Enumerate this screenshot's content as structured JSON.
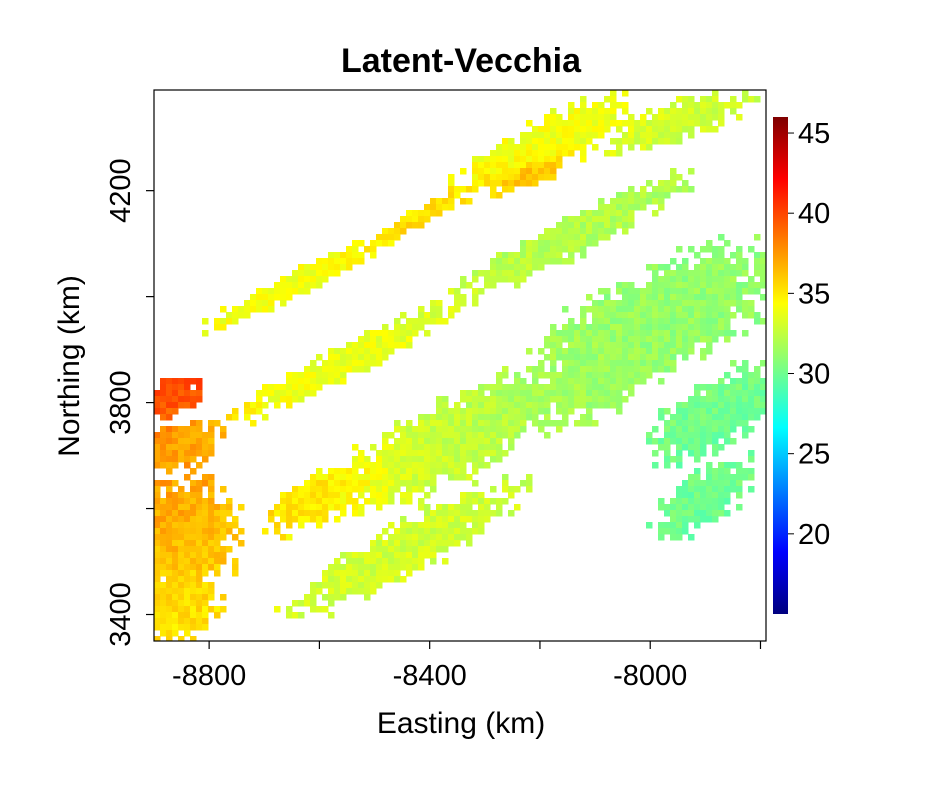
{
  "chart_data": {
    "type": "heatmap",
    "title": "Latent-Vecchia",
    "xlabel": "Easting (km)",
    "ylabel": "Northing (km)",
    "xlim": [
      -8900,
      -7790
    ],
    "ylim": [
      3350,
      4390
    ],
    "x_ticks": [
      -8800,
      -8400,
      -8000
    ],
    "x_minor_ticks": [
      -8600,
      -8200,
      -7800
    ],
    "y_ticks": [
      3400,
      3800,
      4200
    ],
    "y_minor_ticks": [
      3600,
      4000,
      4400
    ],
    "colorbar": {
      "range": [
        15,
        46
      ],
      "ticks": [
        20,
        25,
        30,
        35,
        40,
        45
      ],
      "colormap": "jet",
      "stops": [
        "#00007f",
        "#0000ff",
        "#007fff",
        "#00ffff",
        "#7fff7f",
        "#ffff00",
        "#ff7f00",
        "#ff0000",
        "#7f0000"
      ]
    },
    "grid": false,
    "legend": "right (colorbar)",
    "fields": [
      {
        "x": -8200,
        "y": 4280,
        "v": 34,
        "sx": 160,
        "sy": 40,
        "angle": 28
      },
      {
        "x": -7950,
        "y": 4330,
        "v": 33,
        "sx": 120,
        "sy": 30,
        "angle": 20
      },
      {
        "x": -8150,
        "y": 4110,
        "v": 32,
        "sx": 200,
        "sy": 30,
        "angle": 28
      },
      {
        "x": -7990,
        "y": 3950,
        "v": 31,
        "sx": 220,
        "sy": 80,
        "angle": 28
      },
      {
        "x": -8080,
        "y": 3860,
        "v": 31,
        "sx": 150,
        "sy": 60,
        "angle": 28
      },
      {
        "x": -7880,
        "y": 3780,
        "v": 30,
        "sx": 120,
        "sy": 50,
        "angle": 35
      },
      {
        "x": -7900,
        "y": 3620,
        "v": 30,
        "sx": 90,
        "sy": 40,
        "angle": 40
      },
      {
        "x": -8360,
        "y": 3730,
        "v": 33,
        "sx": 240,
        "sy": 60,
        "angle": 28
      },
      {
        "x": -8600,
        "y": 3620,
        "v": 36,
        "sx": 90,
        "sy": 40,
        "angle": 28
      },
      {
        "x": -8450,
        "y": 3520,
        "v": 33,
        "sx": 200,
        "sy": 40,
        "angle": 30
      },
      {
        "x": -8840,
        "y": 3560,
        "v": 37,
        "sx": 80,
        "sy": 90,
        "angle": 0
      },
      {
        "x": -8860,
        "y": 3720,
        "v": 38,
        "sx": 70,
        "sy": 40,
        "angle": 15
      },
      {
        "x": -8870,
        "y": 3810,
        "v": 40,
        "sx": 50,
        "sy": 30,
        "angle": 10
      },
      {
        "x": -8860,
        "y": 3420,
        "v": 35,
        "sx": 70,
        "sy": 60,
        "angle": 0
      },
      {
        "x": -8550,
        "y": 3880,
        "v": 34,
        "sx": 200,
        "sy": 25,
        "angle": 28
      },
      {
        "x": -8420,
        "y": 4150,
        "v": 36,
        "sx": 80,
        "sy": 15,
        "angle": 30
      },
      {
        "x": -8220,
        "y": 4230,
        "v": 38,
        "sx": 60,
        "sy": 15,
        "angle": 20
      },
      {
        "x": -8650,
        "y": 4020,
        "v": 34,
        "sx": 150,
        "sy": 20,
        "angle": 28
      }
    ]
  }
}
